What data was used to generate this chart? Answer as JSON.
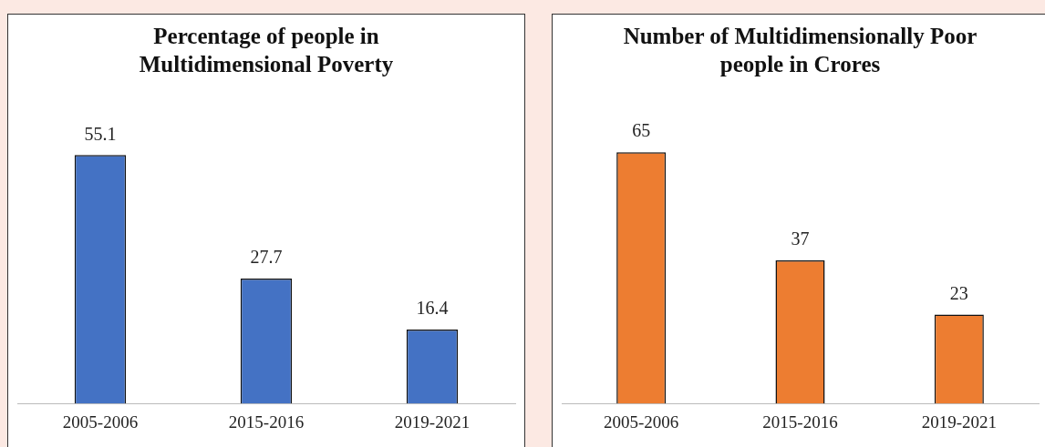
{
  "chart_data": [
    {
      "type": "bar",
      "title": "Percentage of people in Multidimensional Poverty",
      "categories": [
        "2005-2006",
        "2015-2016",
        "2019-2021"
      ],
      "values": [
        55.1,
        27.7,
        16.4
      ],
      "color": "#4472c4",
      "data_labels": true,
      "grid": false,
      "legend": false,
      "tick_labels": "x"
    },
    {
      "type": "bar",
      "title": "Number of Multidimensionally Poor people in Crores",
      "categories": [
        "2005-2006",
        "2015-2016",
        "2019-2021"
      ],
      "values": [
        65,
        37,
        23
      ],
      "color": "#ed7d31",
      "data_labels": true,
      "grid": false,
      "legend": false,
      "tick_labels": "x"
    }
  ]
}
